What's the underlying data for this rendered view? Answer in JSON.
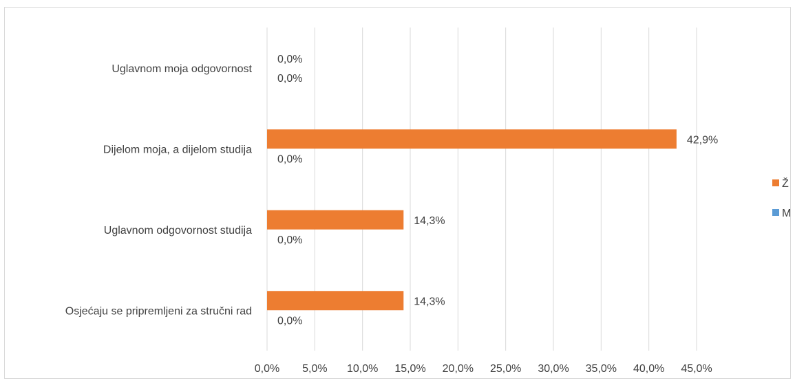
{
  "chart_data": {
    "type": "bar",
    "orientation": "horizontal",
    "title": "",
    "xlabel": "",
    "ylabel": "",
    "categories": [
      "Uglavnom moja odgovornost",
      "Dijelom moja, a dijelom studija",
      "Uglavnom odgovornost studija",
      "Osjećaju se pripremljeni za stručni rad"
    ],
    "series": [
      {
        "name": "Ž",
        "color": "#ED7D31",
        "values": [
          0.0,
          42.9,
          14.3,
          14.3
        ],
        "labels": [
          "0,0%",
          "42,9%",
          "14,3%",
          "14,3%"
        ]
      },
      {
        "name": "M",
        "color": "#5B9BD5",
        "values": [
          0.0,
          0.0,
          0.0,
          0.0
        ],
        "labels": [
          "0,0%",
          "0,0%",
          "0,0%",
          "0,0%"
        ]
      }
    ],
    "xlim": [
      0,
      45
    ],
    "xticks": [
      0,
      5,
      10,
      15,
      20,
      25,
      30,
      35,
      40,
      45
    ],
    "xtick_labels": [
      "0,0%",
      "5,0%",
      "10,0%",
      "15,0%",
      "20,0%",
      "25,0%",
      "30,0%",
      "35,0%",
      "40,0%",
      "45,0%"
    ],
    "grid": "vertical",
    "legend_position": "right",
    "border_color": "#D9D9D9",
    "gridline_color": "#D9D9D9"
  }
}
